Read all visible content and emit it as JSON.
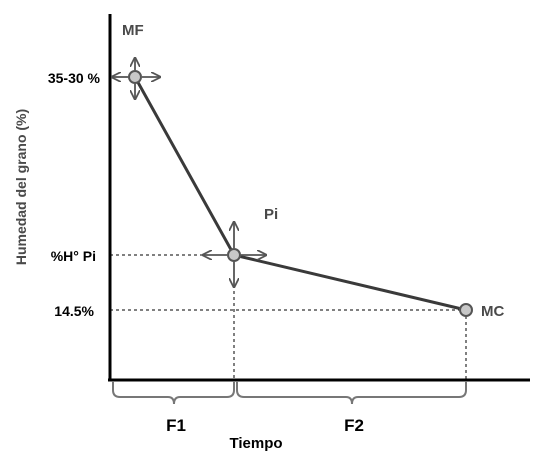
{
  "colors": {
    "axis": "#000000",
    "curve": "#3a3a3a",
    "point_fill": "#c8c8c8",
    "point_stroke": "#555555",
    "arrow": "#555555",
    "guide": "#000000",
    "brace": "#777777",
    "text": "#000000",
    "point_label_text": "#4a4a4a"
  },
  "axes": {
    "y_title": "Humedad del grano (%)",
    "x_title": "Tiempo"
  },
  "points": [
    {
      "id": "mf",
      "label": "MF",
      "moisture_label": "35-30 %"
    },
    {
      "id": "pi",
      "label": "Pi",
      "moisture_label": "%H° Pi"
    },
    {
      "id": "mc",
      "label": "MC",
      "moisture_label": "14.5%"
    }
  ],
  "phases": [
    {
      "id": "f1",
      "label": "F1"
    },
    {
      "id": "f2",
      "label": "F2"
    }
  ]
}
